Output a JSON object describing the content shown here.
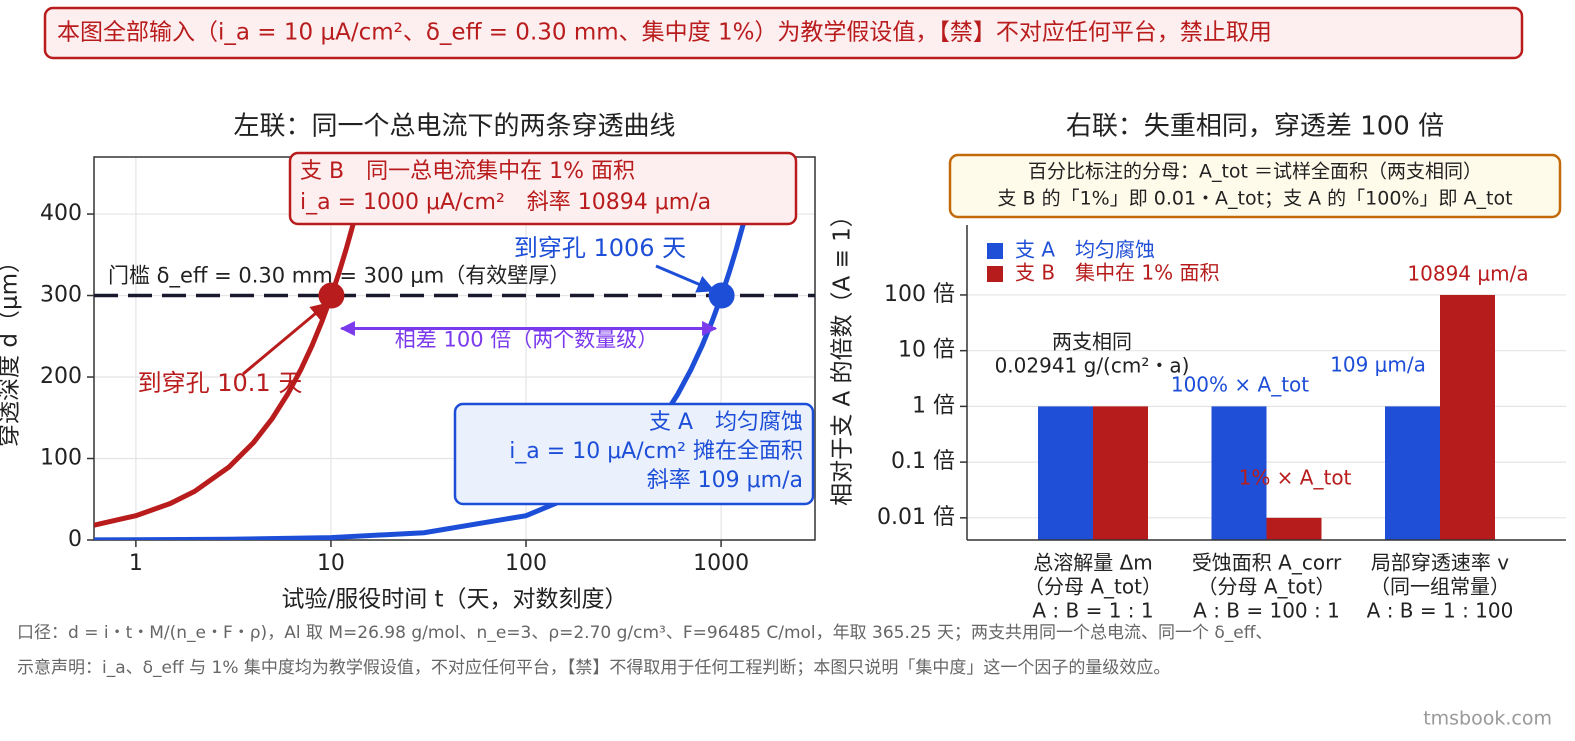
{
  "banner": "本图全部输入（i_a = 10 μA/cm²、δ_eff = 0.30 mm、集中度 1%）为教学假设值，【禁】不对应任何平台，禁止取用",
  "chart_data": [
    {
      "type": "line",
      "title": "左联：同一个总电流下的两条穿透曲线",
      "xlabel": "试验/服役时间 t（天，对数刻度）",
      "ylabel": "穿透深度 d（μm）",
      "xscale": "log",
      "xlim": [
        0.61,
        3030
      ],
      "xticks": [
        1,
        10,
        100,
        1000
      ],
      "ylim": [
        0,
        470
      ],
      "yticks": [
        0,
        100,
        200,
        300,
        400
      ],
      "grid": true,
      "series": [
        {
          "color": "#1d4ed8",
          "x": [
            0.61,
            1,
            3,
            10,
            30,
            100,
            200,
            300,
            400,
            500,
            600,
            700,
            800,
            900,
            1006,
            1100,
            1200,
            1300,
            1400,
            1575
          ],
          "values": [
            0.182,
            0.298,
            0.895,
            2.98,
            8.95,
            29.84,
            59.69,
            89.53,
            119.4,
            149.2,
            179.1,
            208.9,
            238.7,
            268.6,
            300.2,
            328.3,
            358.1,
            388,
            417.8,
            470
          ]
        },
        {
          "color": "#b91c1c",
          "x": [
            0.61,
            1,
            1.5,
            2,
            3,
            4,
            5,
            6,
            7,
            8,
            9,
            10.06,
            11,
            12,
            13,
            14,
            15.8
          ],
          "values": [
            18.19,
            29.83,
            44.74,
            59.65,
            89.48,
            119.3,
            149.1,
            179,
            208.8,
            238.6,
            268.4,
            300,
            328.1,
            357.9,
            387.7,
            417.6,
            471.3
          ]
        }
      ],
      "threshold": {
        "value": 300,
        "label": "门槛 δ_eff = 0.30 mm = 300 μm（有效壁厚）"
      },
      "points": [
        {
          "x": 1006,
          "y": 300,
          "label": "到穿孔 1006 天",
          "color": "#1d4ed8"
        },
        {
          "x": 10.06,
          "y": 300,
          "label": "到穿孔 10.1 天",
          "color": "#b91c1c"
        }
      ],
      "ratio": {
        "label": "相差 100 倍（两个数量级）",
        "color": "#7c3aed"
      },
      "boxes": [
        {
          "lines": [
            "支 B　同一总电流集中在 1% 面积",
            "i_a = 1000 μA/cm²　斜率 10894 μm/a"
          ],
          "color": "#b91c1c",
          "fill": "#fdeef0"
        },
        {
          "lines": [
            "支 A　均匀腐蚀",
            "i_a = 10 μA/cm² 摊在全面积",
            "斜率 109 μm/a"
          ],
          "color": "#1d4ed8",
          "fill": "#eaf1fc"
        }
      ]
    },
    {
      "type": "bar",
      "title": "右联：失重相同，穿透差 100 倍",
      "ylabel": "相对于支 A 的倍数（A ≡ 1）",
      "yscale": "log",
      "ylim": [
        0.004,
        1800
      ],
      "yticks": [
        {
          "value": 100,
          "label": "100 倍"
        },
        {
          "value": 10,
          "label": "10 倍"
        },
        {
          "value": 1,
          "label": "1 倍"
        },
        {
          "value": 0.1,
          "label": "0.1 倍"
        },
        {
          "value": 0.01,
          "label": "0.01 倍"
        }
      ],
      "grid": true,
      "legend": "upper left",
      "categories": [
        [
          "总溶解量 Δm",
          "（分母 A_tot）",
          "A : B = 1 : 1"
        ],
        [
          "受蚀面积 A_corr",
          "（分母 A_tot）",
          "A : B = 100 : 1"
        ],
        [
          "局部穿透速率 v",
          "（同一组常量）",
          "A : B = 1 : 100"
        ]
      ],
      "series": [
        {
          "name": "支 A　均匀腐蚀",
          "color": "#1f4fd6",
          "values": [
            1,
            1,
            1
          ]
        },
        {
          "name": "支 B　集中在 1% 面积",
          "color": "#b71c1c",
          "values": [
            1,
            0.01,
            100
          ]
        }
      ],
      "note": [
        "百分比标注的分母：A_tot ＝试样全面积（两支相同）",
        "支 B 的「1%」即 0.01・A_tot；支 A 的「100%」即 A_tot"
      ],
      "annotations": [
        {
          "text": "10894 μm/a",
          "color": "#b91c1c"
        },
        {
          "text": "两支相同",
          "color": "#222222"
        },
        {
          "text": "0.02941 g/(cm²・a)",
          "color": "#222222"
        },
        {
          "text": "100% × A_tot",
          "color": "#1d4ed8"
        },
        {
          "text": "109 μm/a",
          "color": "#1d4ed8"
        },
        {
          "text": "1% × A_tot",
          "color": "#b91c1c"
        }
      ]
    }
  ],
  "footer": [
    "口径：d = i・t・M/(n_e・F・ρ)，Al 取 M=26.98 g/mol、n_e=3、ρ=2.70 g/cm³、F=96485 C/mol，年取 365.25 天；两支共用同一个总电流、同一个 δ_eff、",
    "示意声明：i_a、δ_eff 与 1% 集中度均为教学假设值，不对应任何平台，【禁】不得取用于任何工程判断；本图只说明「集中度」这一个因子的量级效应。"
  ],
  "watermark": "tmsbook.com"
}
